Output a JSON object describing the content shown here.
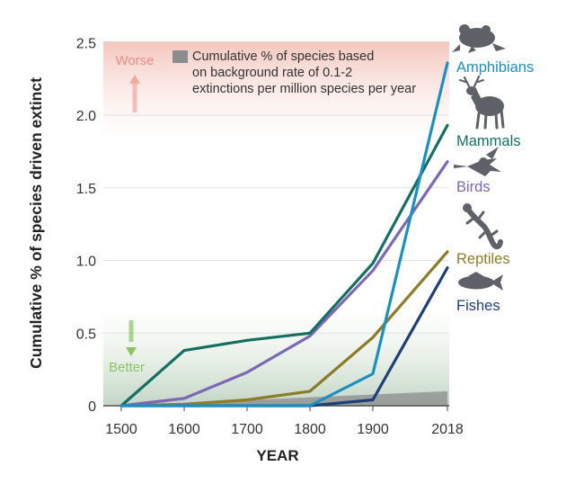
{
  "chart_data": {
    "type": "line",
    "xlabel": "YEAR",
    "ylabel": "Cumulative % of species driven extinct",
    "ylim": [
      0,
      2.5
    ],
    "x_ticks": [
      "1500",
      "1600",
      "1700",
      "1800",
      "1900",
      "2018"
    ],
    "y_ticks": [
      "0",
      "0.5",
      "1.0",
      "1.5",
      "2.0",
      "2.5"
    ],
    "x": [
      1500,
      1600,
      1700,
      1800,
      1900,
      2018
    ],
    "legend": {
      "label": "Cumulative % of species based on background rate of 0.1-2 extinctions per million species per year",
      "lines": [
        "Cumulative % of species based",
        "on background rate of 0.1-2",
        "extinctions per million species per year"
      ],
      "swatch_color": "#8c8c8c"
    },
    "annotations": {
      "worse": "Worse",
      "better": "Better",
      "worse_color": "#f08a8a",
      "better_color": "#8cc45f"
    },
    "background_band": {
      "name": "background rate",
      "x": [
        1500,
        2018
      ],
      "lower": [
        0,
        0
      ],
      "upper": [
        0,
        0.1
      ],
      "color": "#8c8c8c"
    },
    "series": [
      {
        "name": "Amphibians",
        "color": "#1c8fc1",
        "icon": "frog-icon",
        "values": [
          0,
          0,
          0,
          0,
          0.22,
          2.36
        ]
      },
      {
        "name": "Mammals",
        "color": "#146f62",
        "icon": "deer-icon",
        "values": [
          0,
          0.38,
          0.45,
          0.5,
          0.98,
          1.93
        ]
      },
      {
        "name": "Birds",
        "color": "#7c68b4",
        "icon": "hummingbird-icon",
        "values": [
          0,
          0.05,
          0.23,
          0.48,
          0.93,
          1.68
        ]
      },
      {
        "name": "Reptiles",
        "color": "#8b7c2a",
        "icon": "lizard-icon",
        "values": [
          0,
          0.01,
          0.04,
          0.1,
          0.47,
          1.06
        ]
      },
      {
        "name": "Fishes",
        "color": "#1e3f75",
        "icon": "fish-icon",
        "values": [
          0,
          0,
          0,
          0,
          0.04,
          0.95
        ]
      }
    ]
  }
}
